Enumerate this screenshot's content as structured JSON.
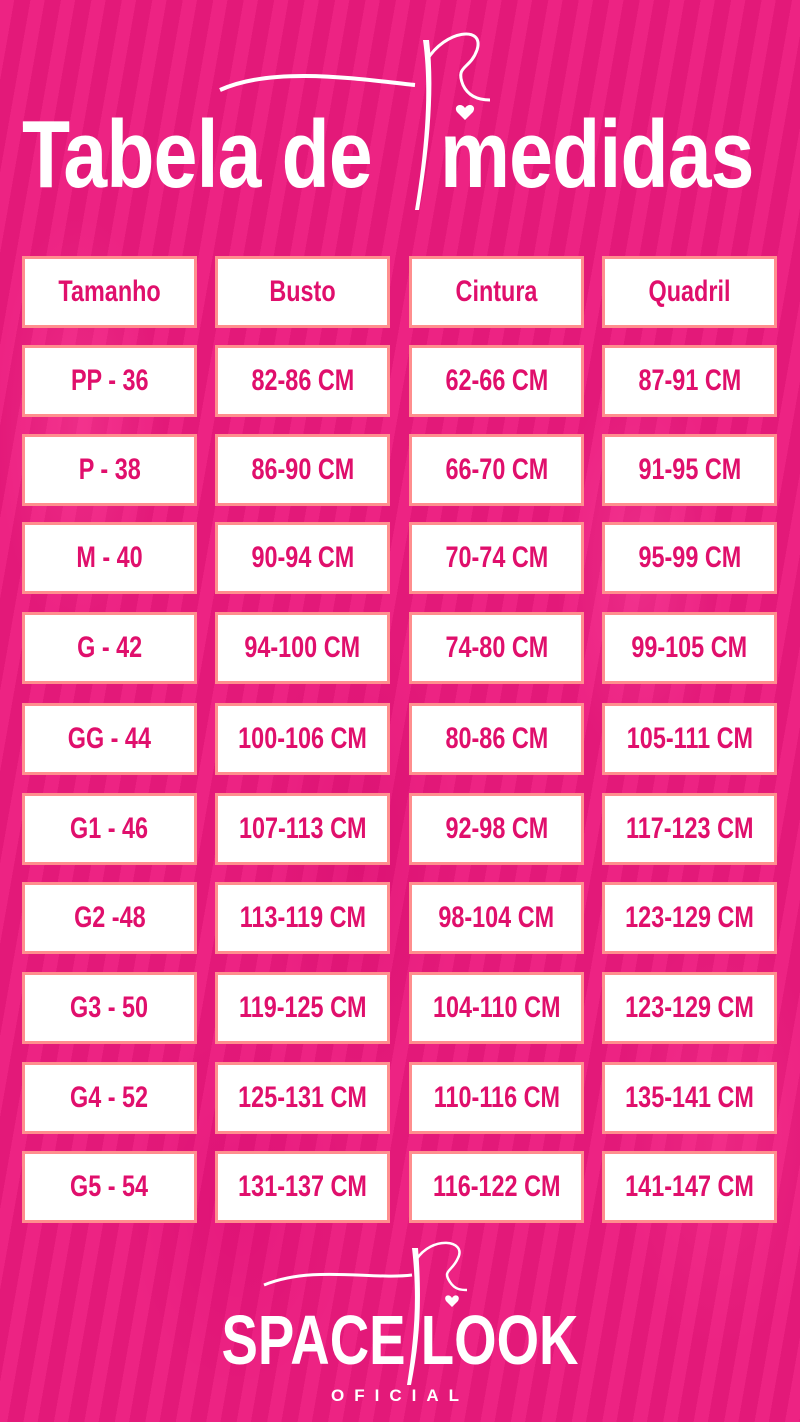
{
  "title": {
    "part1": "Tabela de",
    "part2": "medidas"
  },
  "colors": {
    "background": "#ec1a7e",
    "cell_text": "#e00f6c",
    "cell_border": "#ff8e8e",
    "cell_bg": "#ffffff"
  },
  "table": {
    "headers": [
      "Tamanho",
      "Busto",
      "Cintura",
      "Quadril"
    ],
    "rows": [
      [
        "PP - 36",
        "82-86 CM",
        "62-66 CM",
        "87-91 CM"
      ],
      [
        "P - 38",
        "86-90 CM",
        "66-70 CM",
        "91-95 CM"
      ],
      [
        "M - 40",
        "90-94 CM",
        "70-74 CM",
        "95-99 CM"
      ],
      [
        "G - 42",
        "94-100 CM",
        "74-80 CM",
        "99-105 CM"
      ],
      [
        "GG - 44",
        "100-106 CM",
        "80-86 CM",
        "105-111 CM"
      ],
      [
        "G1 - 46",
        "107-113 CM",
        "92-98 CM",
        "117-123 CM"
      ],
      [
        "G2 -48",
        "113-119 CM",
        "98-104 CM",
        "123-129 CM"
      ],
      [
        "G3 - 50",
        "119-125 CM",
        "104-110 CM",
        "123-129 CM"
      ],
      [
        "G4 - 52",
        "125-131 CM",
        "110-116 CM",
        "135-141 CM"
      ],
      [
        "G5  - 54",
        "131-137 CM",
        "116-122 CM",
        "141-147 CM"
      ]
    ]
  },
  "brand": {
    "name": "SPACE LOOK",
    "subtitle": "OFICIAL",
    "icon": "needle-thread-heart-icon"
  }
}
